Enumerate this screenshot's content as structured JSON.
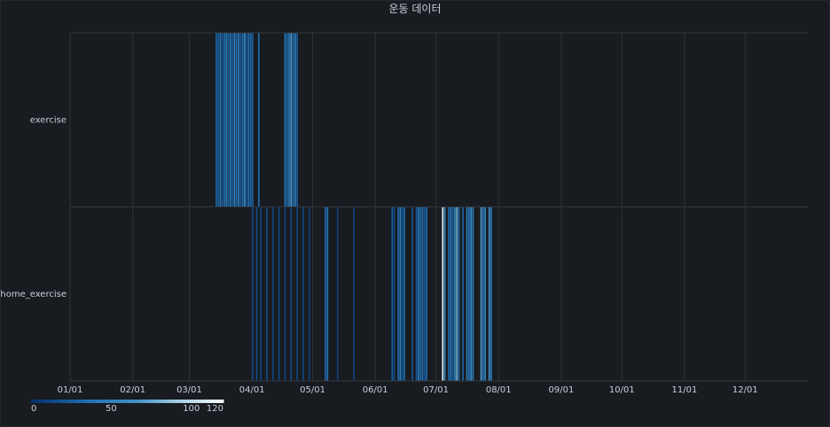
{
  "panel": {
    "title": "운동 데이터"
  },
  "chart_data": {
    "type": "heatmap",
    "title": "운동 데이터",
    "rows": [
      "exercise",
      "home_exercise"
    ],
    "x_ticks": [
      "01/01",
      "02/01",
      "03/01",
      "04/01",
      "05/01",
      "06/01",
      "07/01",
      "08/01",
      "09/01",
      "10/01",
      "11/01",
      "12/01"
    ],
    "x_range": [
      "01/01",
      "12/31"
    ],
    "color_scale": {
      "min": 0,
      "max": 120,
      "ticks": [
        0,
        50,
        100,
        120
      ],
      "scheme": "blues"
    },
    "grid": true,
    "legend_position": "bottom-left",
    "series": [
      {
        "name": "exercise",
        "points": [
          [
            "03/14",
            30
          ],
          [
            "03/15",
            25
          ],
          [
            "03/16",
            45
          ],
          [
            "03/17",
            20
          ],
          [
            "03/18",
            35
          ],
          [
            "03/19",
            50
          ],
          [
            "03/20",
            28
          ],
          [
            "03/21",
            40
          ],
          [
            "03/22",
            22
          ],
          [
            "03/23",
            55
          ],
          [
            "03/24",
            30
          ],
          [
            "03/25",
            45
          ],
          [
            "03/26",
            25
          ],
          [
            "03/27",
            35
          ],
          [
            "03/28",
            60
          ],
          [
            "03/29",
            20
          ],
          [
            "03/30",
            40
          ],
          [
            "03/31",
            30
          ],
          [
            "04/01",
            25
          ],
          [
            "04/04",
            35
          ],
          [
            "04/17",
            40
          ],
          [
            "04/18",
            30
          ],
          [
            "04/19",
            45
          ],
          [
            "04/20",
            70
          ],
          [
            "04/21",
            35
          ],
          [
            "04/22",
            50
          ],
          [
            "04/23",
            25
          ]
        ]
      },
      {
        "name": "home_exercise",
        "points": [
          [
            "04/01",
            10
          ],
          [
            "04/03",
            15
          ],
          [
            "04/05",
            10
          ],
          [
            "04/08",
            15
          ],
          [
            "04/11",
            10
          ],
          [
            "04/14",
            12
          ],
          [
            "04/17",
            10
          ],
          [
            "04/20",
            15
          ],
          [
            "04/23",
            10
          ],
          [
            "04/26",
            12
          ],
          [
            "04/29",
            10
          ],
          [
            "05/07",
            30
          ],
          [
            "05/08",
            40
          ],
          [
            "05/13",
            10
          ],
          [
            "05/21",
            10
          ],
          [
            "06/09",
            25
          ],
          [
            "06/10",
            15
          ],
          [
            "06/12",
            30
          ],
          [
            "06/13",
            50
          ],
          [
            "06/14",
            20
          ],
          [
            "06/15",
            35
          ],
          [
            "06/19",
            20
          ],
          [
            "06/21",
            25
          ],
          [
            "06/22",
            45
          ],
          [
            "06/23",
            30
          ],
          [
            "06/24",
            40
          ],
          [
            "06/25",
            20
          ],
          [
            "06/26",
            35
          ],
          [
            "07/04",
            110
          ],
          [
            "07/05",
            60
          ],
          [
            "07/07",
            30
          ],
          [
            "07/08",
            45
          ],
          [
            "07/09",
            25
          ],
          [
            "07/10",
            55
          ],
          [
            "07/11",
            80
          ],
          [
            "07/12",
            40
          ],
          [
            "07/14",
            30
          ],
          [
            "07/16",
            50
          ],
          [
            "07/17",
            35
          ],
          [
            "07/18",
            60
          ],
          [
            "07/19",
            45
          ],
          [
            "07/23",
            70
          ],
          [
            "07/24",
            40
          ],
          [
            "07/25",
            55
          ],
          [
            "07/27",
            65
          ],
          [
            "07/28",
            45
          ]
        ]
      }
    ]
  }
}
